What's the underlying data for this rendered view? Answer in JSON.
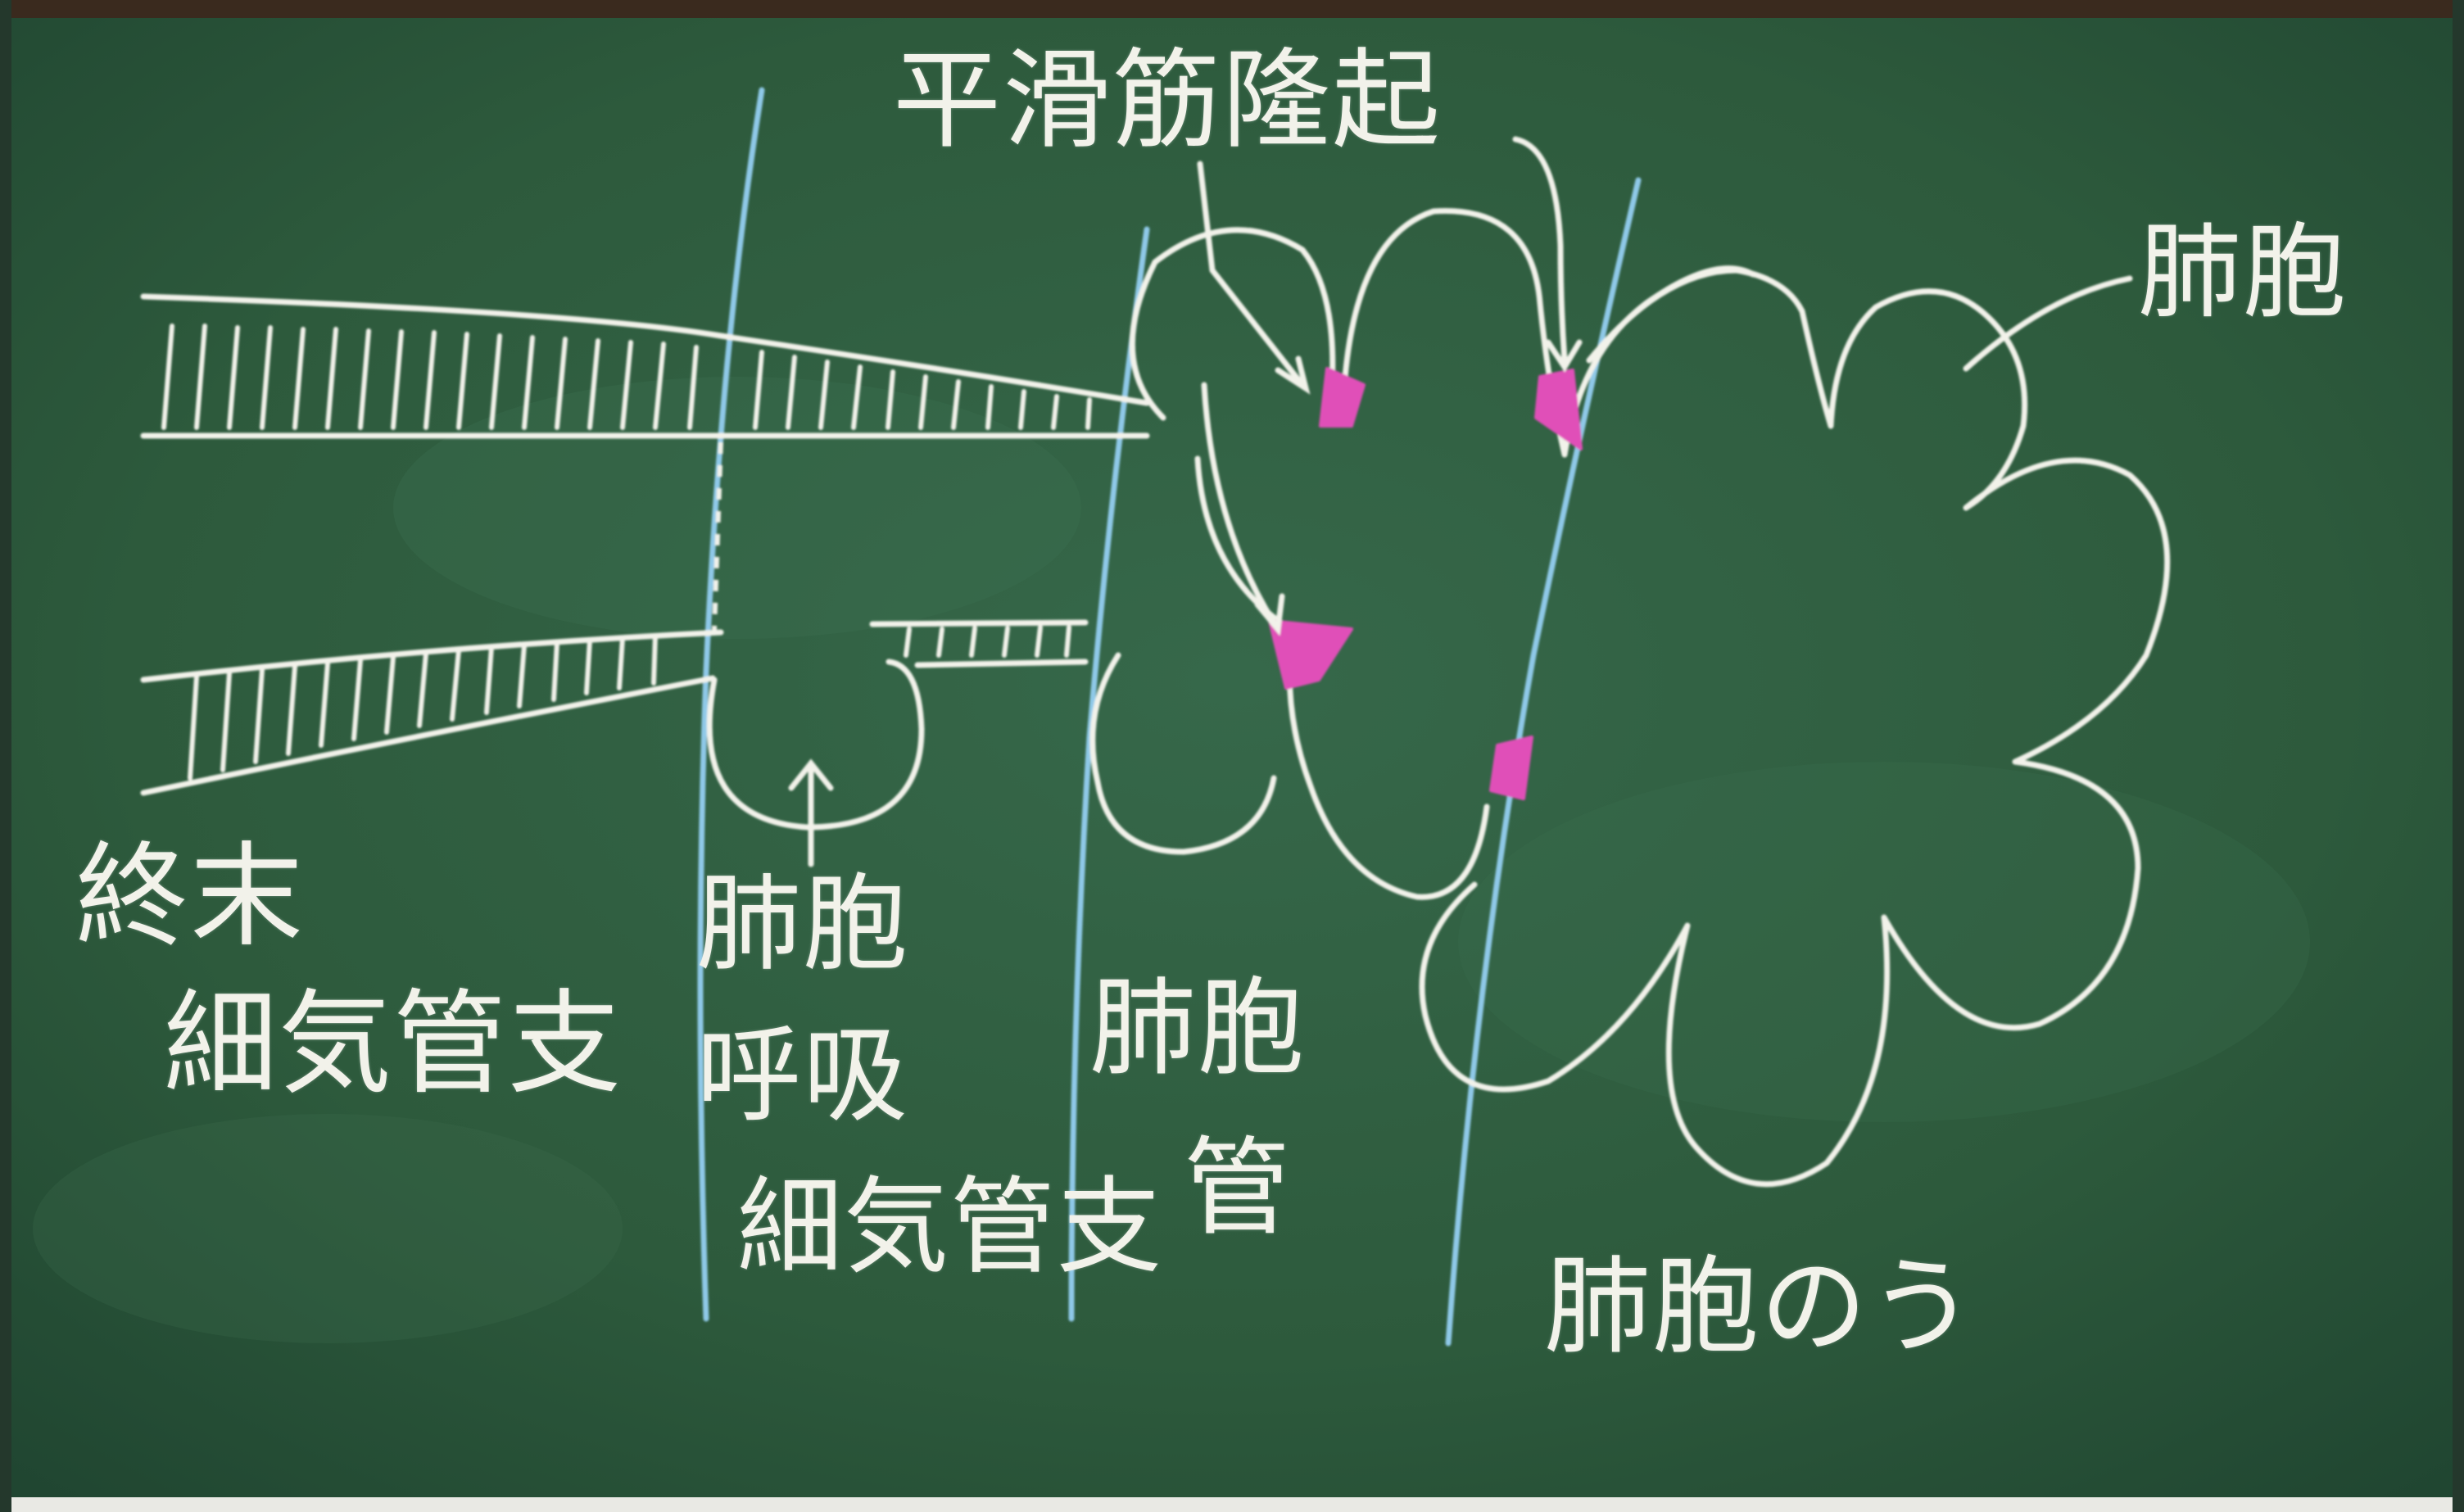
{
  "labels": {
    "smooth_muscle_knob": "平滑筋隆起",
    "alveolus_top": "肺胞",
    "terminal_bronchiole_line1": "終末",
    "terminal_bronchiole_line2": "細気管支",
    "respiratory_bronchiole_line1": "肺胞",
    "respiratory_bronchiole_line2": "呼吸",
    "respiratory_bronchiole_line3": "細気管支",
    "alveolar_duct_line1": "肺胞",
    "alveolar_duct_line2": "管",
    "alveolar_sac": "肺胞のう"
  },
  "colors": {
    "board": "#2d5a3c",
    "chalk": "#f2f2ea",
    "blue_chalk": "#8fc9e8",
    "pink_chalk": "#e04fb8",
    "frame": "#3a2a1e"
  }
}
